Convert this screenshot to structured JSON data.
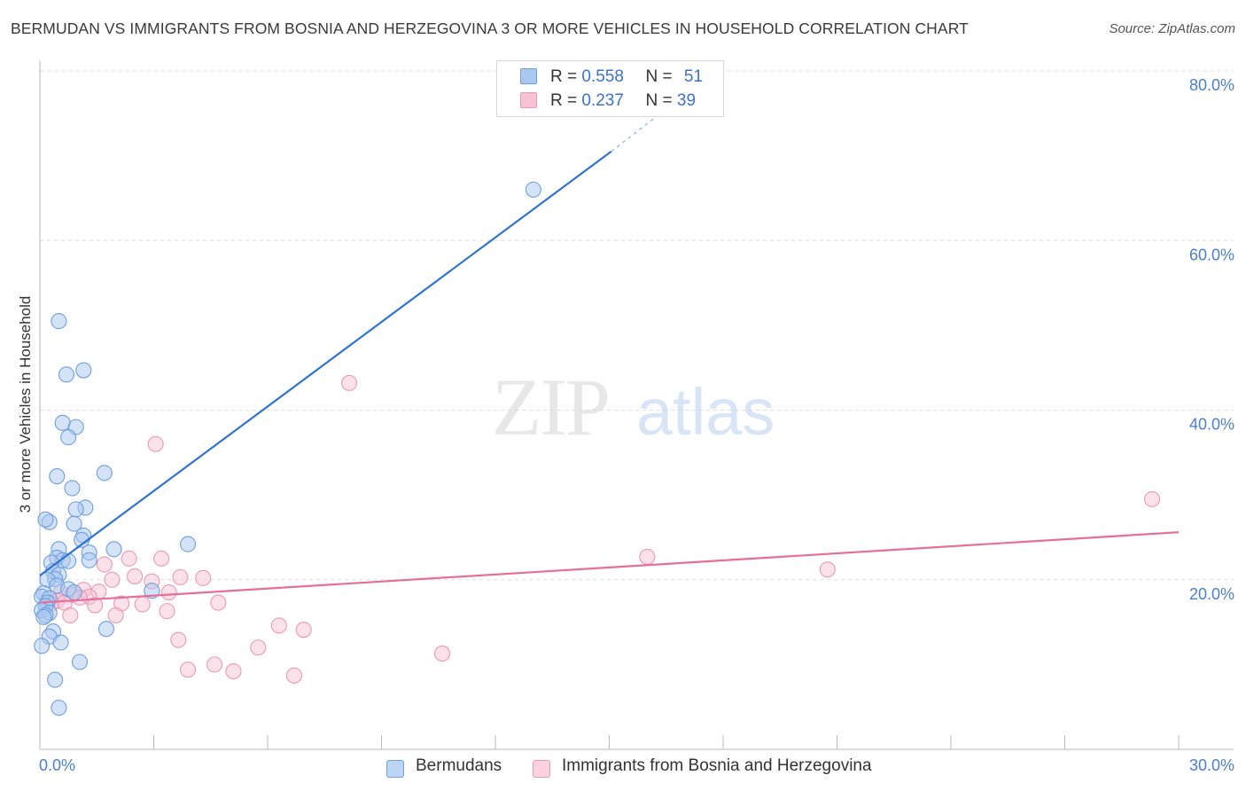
{
  "title": "BERMUDAN VS IMMIGRANTS FROM BOSNIA AND HERZEGOVINA 3 OR MORE VEHICLES IN HOUSEHOLD CORRELATION CHART",
  "source": "Source: ZipAtlas.com",
  "watermark": {
    "zip": "ZIP",
    "atlas": "atlas"
  },
  "legend": {
    "rows": [
      {
        "r_label": "R =",
        "r_value": "0.558",
        "n_label": "N =",
        "n_value": "51"
      },
      {
        "r_label": "R =",
        "r_value": "0.237",
        "n_label": "N =",
        "n_value": "39"
      }
    ]
  },
  "colors": {
    "blue_fill": "#a9c8f0",
    "blue_stroke": "#6e9fdf",
    "blue_line": "#2f74d0",
    "pink_fill": "#f7c3d4",
    "pink_stroke": "#ec98b5",
    "pink_line": "#e66f9a",
    "axis_label": "#4a7fd0",
    "grid": "#dddddd"
  },
  "chart_data": {
    "type": "scatter",
    "title": "BERMUDAN VS IMMIGRANTS FROM BOSNIA AND HERZEGOVINA 3 OR MORE VEHICLES IN HOUSEHOLD CORRELATION CHART",
    "xlabel": "",
    "ylabel": "3 or more Vehicles in Household",
    "xlim": [
      0,
      30
    ],
    "ylim": [
      0,
      80
    ],
    "x_tick_labels": [
      "0.0%",
      "30.0%"
    ],
    "y_ticks": [
      20,
      40,
      60,
      80
    ],
    "y_tick_labels": [
      "20.0%",
      "40.0%",
      "60.0%",
      "80.0%"
    ],
    "grid": true,
    "series": [
      {
        "name": "Bermudans",
        "color": "blue",
        "R": 0.558,
        "N": 51,
        "points": [
          [
            0.5,
            50.5
          ],
          [
            1.15,
            44.7
          ],
          [
            0.7,
            44.2
          ],
          [
            0.6,
            38.5
          ],
          [
            0.95,
            38.0
          ],
          [
            0.75,
            36.8
          ],
          [
            0.45,
            32.2
          ],
          [
            0.85,
            30.8
          ],
          [
            1.7,
            32.6
          ],
          [
            1.2,
            28.5
          ],
          [
            0.95,
            28.3
          ],
          [
            0.25,
            26.8
          ],
          [
            0.15,
            27.1
          ],
          [
            0.9,
            26.6
          ],
          [
            1.15,
            25.2
          ],
          [
            1.1,
            24.7
          ],
          [
            0.5,
            23.6
          ],
          [
            1.95,
            23.6
          ],
          [
            1.3,
            23.2
          ],
          [
            3.9,
            24.2
          ],
          [
            0.45,
            22.6
          ],
          [
            0.6,
            22.3
          ],
          [
            0.75,
            22.2
          ],
          [
            1.3,
            22.3
          ],
          [
            0.3,
            22.0
          ],
          [
            0.35,
            21.0
          ],
          [
            0.5,
            20.6
          ],
          [
            0.4,
            20.1
          ],
          [
            0.2,
            20.0
          ],
          [
            0.45,
            19.3
          ],
          [
            0.1,
            18.4
          ],
          [
            0.75,
            18.9
          ],
          [
            0.9,
            18.5
          ],
          [
            2.95,
            18.7
          ],
          [
            0.05,
            18.0
          ],
          [
            0.25,
            17.8
          ],
          [
            0.2,
            17.3
          ],
          [
            0.15,
            16.9
          ],
          [
            0.05,
            16.4
          ],
          [
            0.25,
            16.1
          ],
          [
            0.15,
            15.8
          ],
          [
            0.1,
            15.6
          ],
          [
            1.75,
            14.2
          ],
          [
            0.35,
            13.9
          ],
          [
            0.25,
            13.3
          ],
          [
            0.55,
            12.6
          ],
          [
            0.05,
            12.2
          ],
          [
            1.05,
            10.3
          ],
          [
            0.4,
            8.2
          ],
          [
            0.5,
            4.9
          ],
          [
            13.0,
            66.0
          ]
        ],
        "trend": {
          "x": [
            0.0,
            15.05
          ],
          "y": [
            20.5,
            70.5
          ],
          "dashed_extension": {
            "x": [
              15.05,
              16.5
            ],
            "y": [
              70.5,
              75.5
            ]
          }
        }
      },
      {
        "name": "Immigrants from Bosnia and Herzegovina",
        "color": "pink",
        "R": 0.237,
        "N": 39,
        "points": [
          [
            3.05,
            36.0
          ],
          [
            8.15,
            43.2
          ],
          [
            29.3,
            29.5
          ],
          [
            16.0,
            22.7
          ],
          [
            20.75,
            21.2
          ],
          [
            2.35,
            22.5
          ],
          [
            3.2,
            22.5
          ],
          [
            1.7,
            21.8
          ],
          [
            2.5,
            20.4
          ],
          [
            3.7,
            20.3
          ],
          [
            4.3,
            20.2
          ],
          [
            1.9,
            20.0
          ],
          [
            2.95,
            19.8
          ],
          [
            3.4,
            18.5
          ],
          [
            1.15,
            18.8
          ],
          [
            1.55,
            18.6
          ],
          [
            0.55,
            18.5
          ],
          [
            0.85,
            18.2
          ],
          [
            1.3,
            18.0
          ],
          [
            1.05,
            17.9
          ],
          [
            0.45,
            17.5
          ],
          [
            0.65,
            17.3
          ],
          [
            2.15,
            17.2
          ],
          [
            2.7,
            17.1
          ],
          [
            4.7,
            17.3
          ],
          [
            1.45,
            17.0
          ],
          [
            3.35,
            16.3
          ],
          [
            0.8,
            15.8
          ],
          [
            2.0,
            15.8
          ],
          [
            6.3,
            14.6
          ],
          [
            6.95,
            14.1
          ],
          [
            3.65,
            12.9
          ],
          [
            5.75,
            12.0
          ],
          [
            10.6,
            11.3
          ],
          [
            4.6,
            10.0
          ],
          [
            3.9,
            9.4
          ],
          [
            5.1,
            9.2
          ],
          [
            6.7,
            8.7
          ],
          [
            0.3,
            17.2
          ]
        ],
        "trend": {
          "x": [
            0.0,
            30.0
          ],
          "y": [
            17.3,
            25.6
          ]
        }
      }
    ]
  },
  "bottom_legend": [
    {
      "label": "Bermudans"
    },
    {
      "label": "Immigrants from Bosnia and Herzegovina"
    }
  ]
}
